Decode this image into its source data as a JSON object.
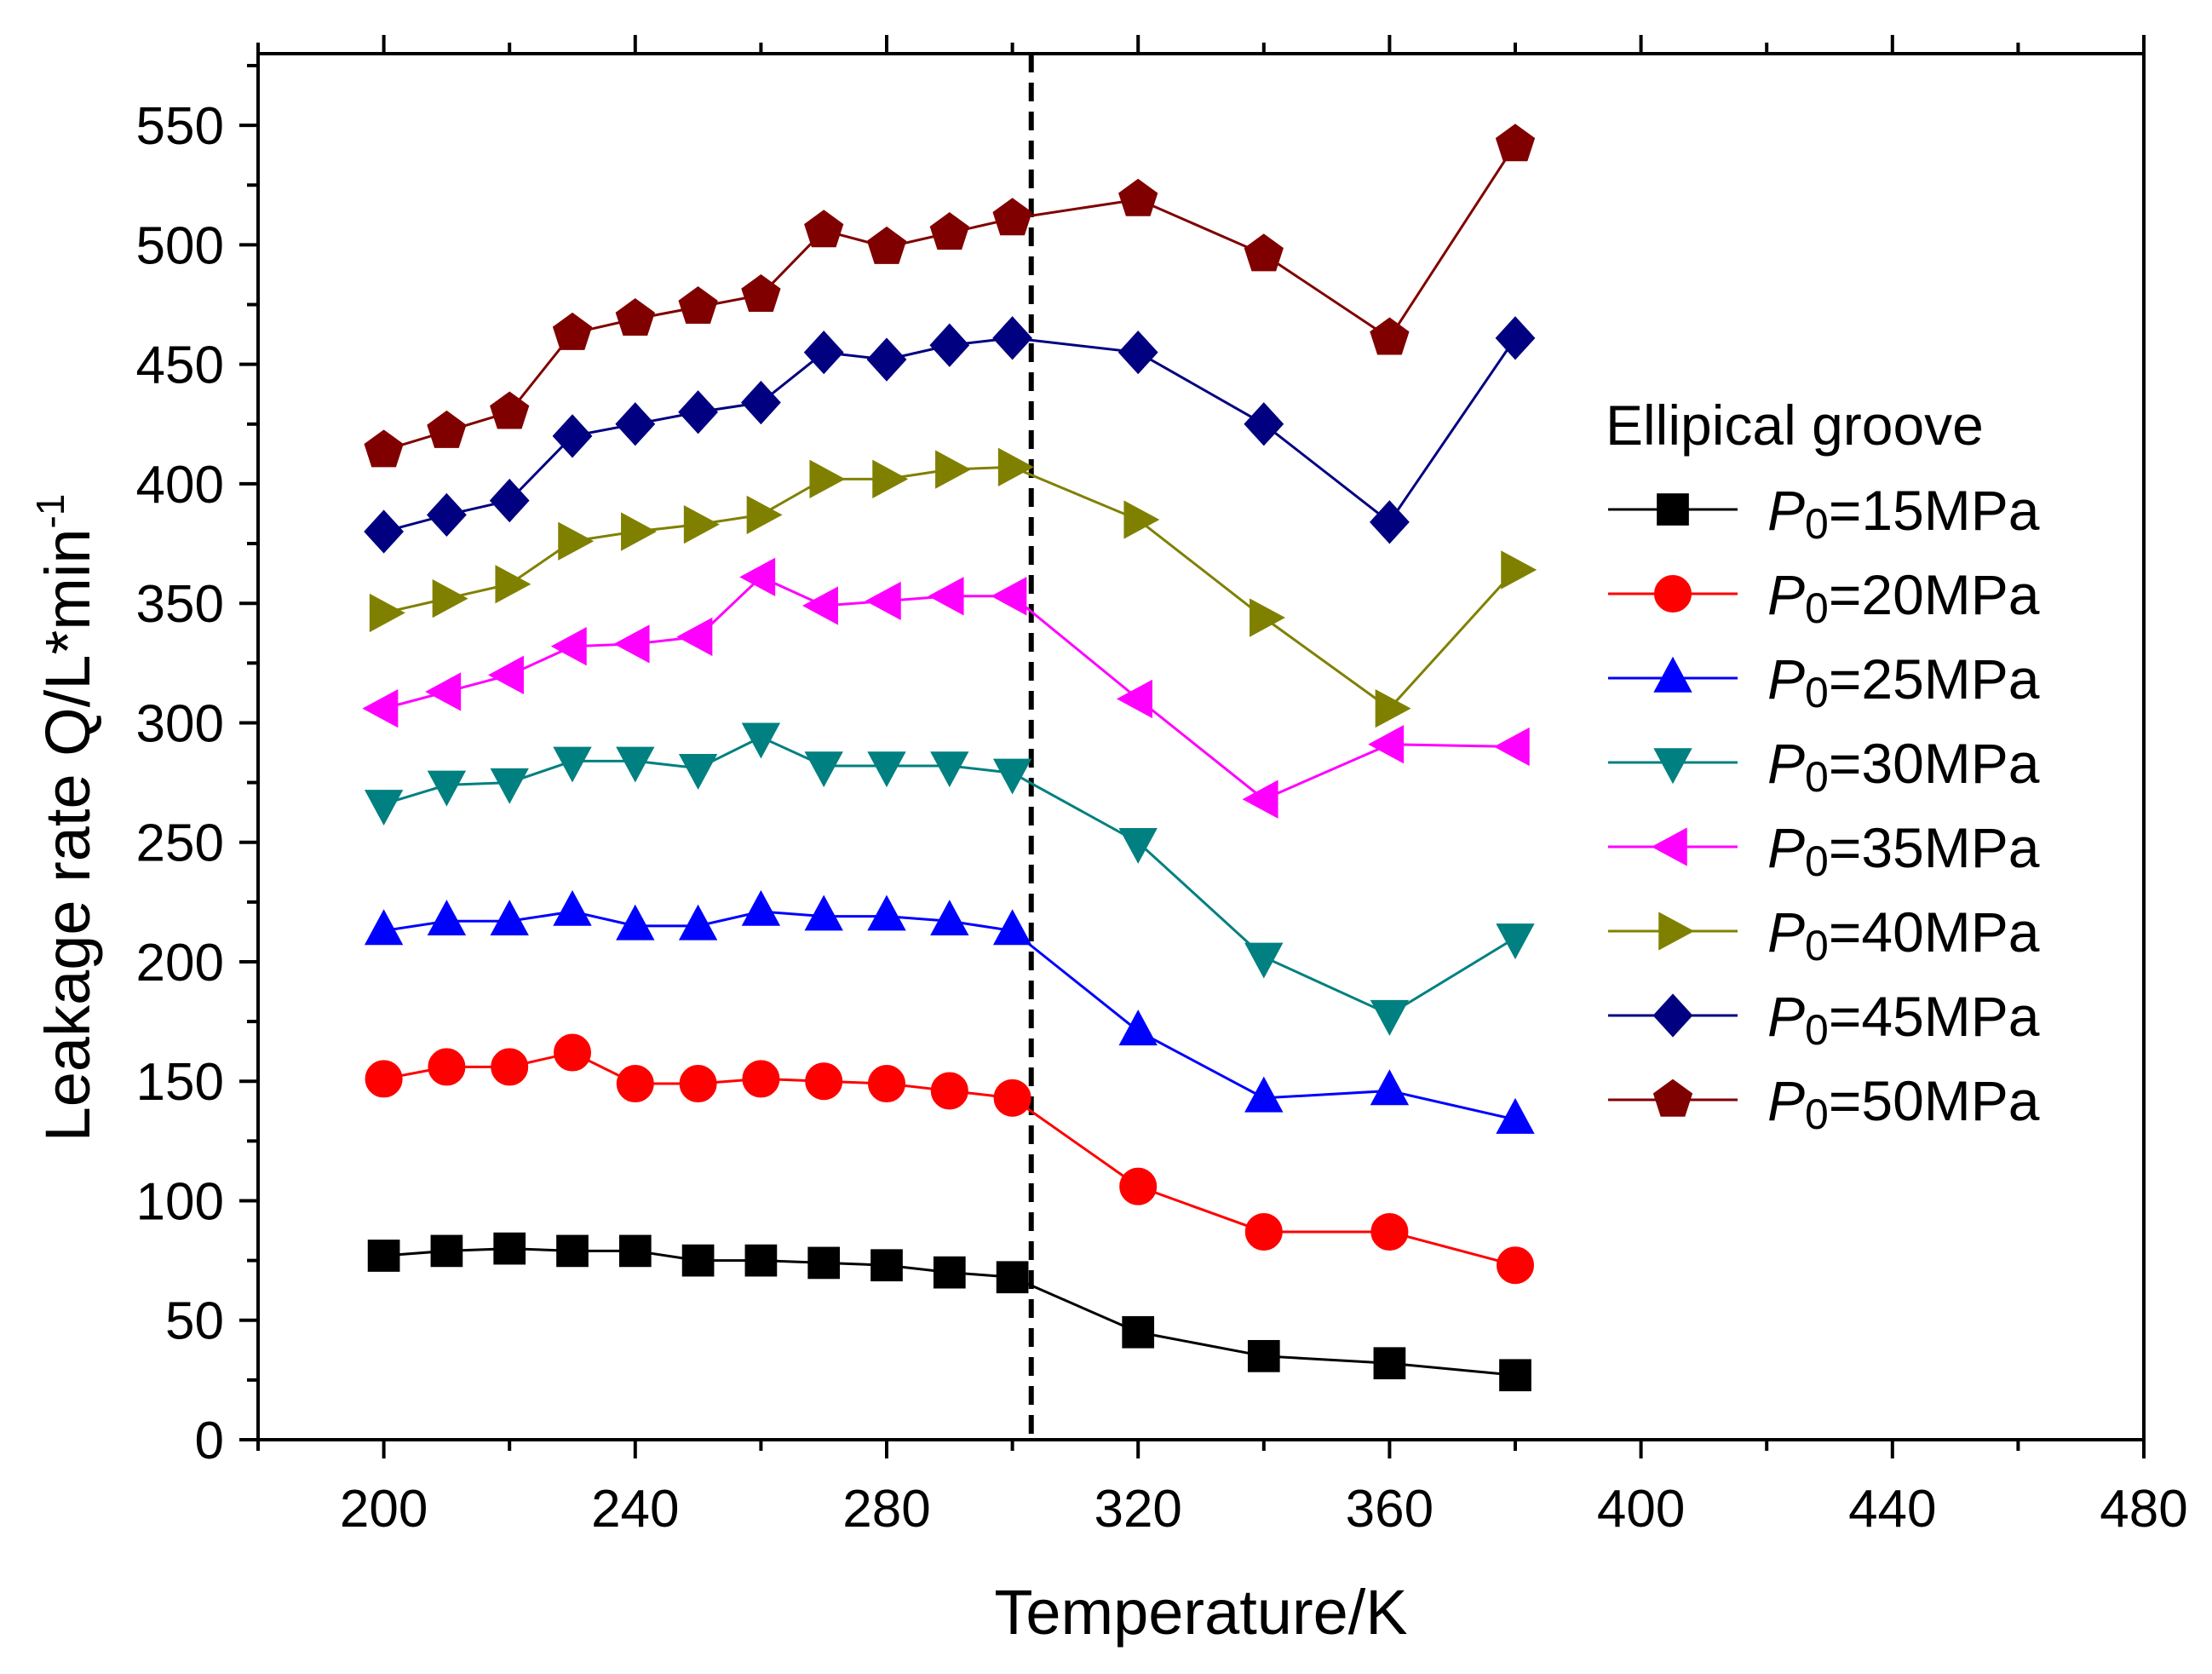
{
  "chart_data": {
    "type": "line",
    "title": "",
    "xlabel": "Temperature/K",
    "ylabel": "Leakage rate Q/L*min",
    "ylabel_superscript": "-1",
    "xlim": [
      180,
      480
    ],
    "ylim": [
      0,
      580
    ],
    "x_ticks": [
      200,
      240,
      280,
      320,
      360,
      400,
      440,
      480
    ],
    "y_ticks": [
      0,
      50,
      100,
      150,
      200,
      250,
      300,
      350,
      400,
      450,
      500,
      550
    ],
    "reference_line_x": 303,
    "legend": {
      "title": "Ellipical groove",
      "position": "right"
    },
    "x": [
      200,
      210,
      220,
      230,
      240,
      250,
      260,
      270,
      280,
      290,
      300,
      320,
      340,
      360,
      380
    ],
    "series": [
      {
        "name": "=15MPa",
        "prefix": "P",
        "subscript": "0",
        "marker": "square",
        "color": "#000000",
        "values": [
          77,
          79,
          80,
          79,
          79,
          75,
          75,
          74,
          73,
          70,
          68,
          45,
          35,
          32,
          27
        ]
      },
      {
        "name": "=20MPa",
        "prefix": "P",
        "subscript": "0",
        "marker": "circle",
        "color": "#ff0000",
        "values": [
          151,
          156,
          156,
          162,
          149,
          149,
          151,
          150,
          149,
          146,
          143,
          106,
          87,
          87,
          73
        ]
      },
      {
        "name": "=25MPa",
        "prefix": "P",
        "subscript": "0",
        "marker": "triangle-up",
        "color": "#0000ff",
        "values": [
          213,
          217,
          217,
          221,
          215,
          215,
          221,
          219,
          219,
          217,
          213,
          171,
          143,
          146,
          134
        ]
      },
      {
        "name": "=30MPa",
        "prefix": "P",
        "subscript": "0",
        "marker": "triangle-down",
        "color": "#008080",
        "values": [
          266,
          274,
          275,
          284,
          284,
          281,
          294,
          282,
          282,
          282,
          279,
          250,
          202,
          178,
          210
        ]
      },
      {
        "name": "=35MPa",
        "prefix": "P",
        "subscript": "0",
        "marker": "triangle-left",
        "color": "#ff00ff",
        "values": [
          306,
          313,
          320,
          332,
          333,
          336,
          361,
          349,
          351,
          353,
          353,
          310,
          268,
          291,
          290
        ]
      },
      {
        "name": "=40MPa",
        "prefix": "P",
        "subscript": "0",
        "marker": "triangle-right",
        "color": "#808000",
        "values": [
          346,
          352,
          358,
          376,
          380,
          383,
          387,
          402,
          402,
          406,
          407,
          385,
          344,
          306,
          364
        ]
      },
      {
        "name": "=45MPa",
        "prefix": "P",
        "subscript": "0",
        "marker": "diamond",
        "color": "#000080",
        "values": [
          380,
          387,
          393,
          420,
          425,
          430,
          434,
          455,
          452,
          458,
          461,
          455,
          425,
          384,
          461
        ]
      },
      {
        "name": "=50MPa",
        "prefix": "P",
        "subscript": "0",
        "marker": "pentagon",
        "color": "#800000",
        "values": [
          414,
          422,
          430,
          463,
          469,
          474,
          479,
          506,
          499,
          505,
          511,
          519,
          496,
          461,
          542
        ]
      }
    ]
  }
}
